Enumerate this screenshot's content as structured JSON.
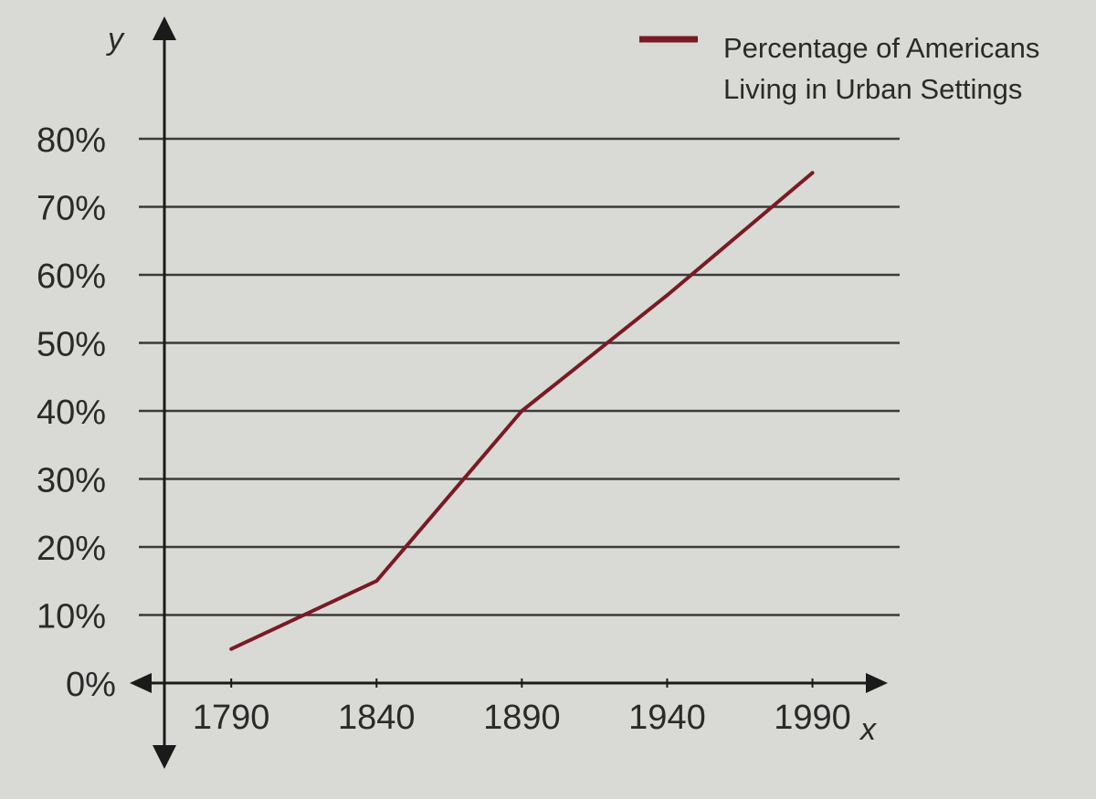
{
  "chart_data": {
    "type": "line",
    "xlabel": "x",
    "ylabel": "y",
    "x_ticks": [
      "1790",
      "1840",
      "1890",
      "1940",
      "1990"
    ],
    "y_ticks": [
      "0%",
      "10%",
      "20%",
      "30%",
      "40%",
      "50%",
      "60%",
      "70%",
      "80%"
    ],
    "xlim": [
      1767,
      2020
    ],
    "ylim": [
      0,
      80
    ],
    "grid": true,
    "legend_position": "top-right",
    "colors": {
      "series": "#7a1a22",
      "grid": "#3a3a3a",
      "axis": "#1a1a1a",
      "background": "#d9d9d5"
    },
    "series": [
      {
        "name": "Percentage of Americans Living in Urban Settings",
        "legend_lines": [
          "Percentage of Americans",
          "Living in Urban Settings"
        ],
        "x": [
          1790,
          1840,
          1890,
          1940,
          1990
        ],
        "y": [
          5,
          15,
          40,
          57,
          75
        ]
      }
    ]
  }
}
